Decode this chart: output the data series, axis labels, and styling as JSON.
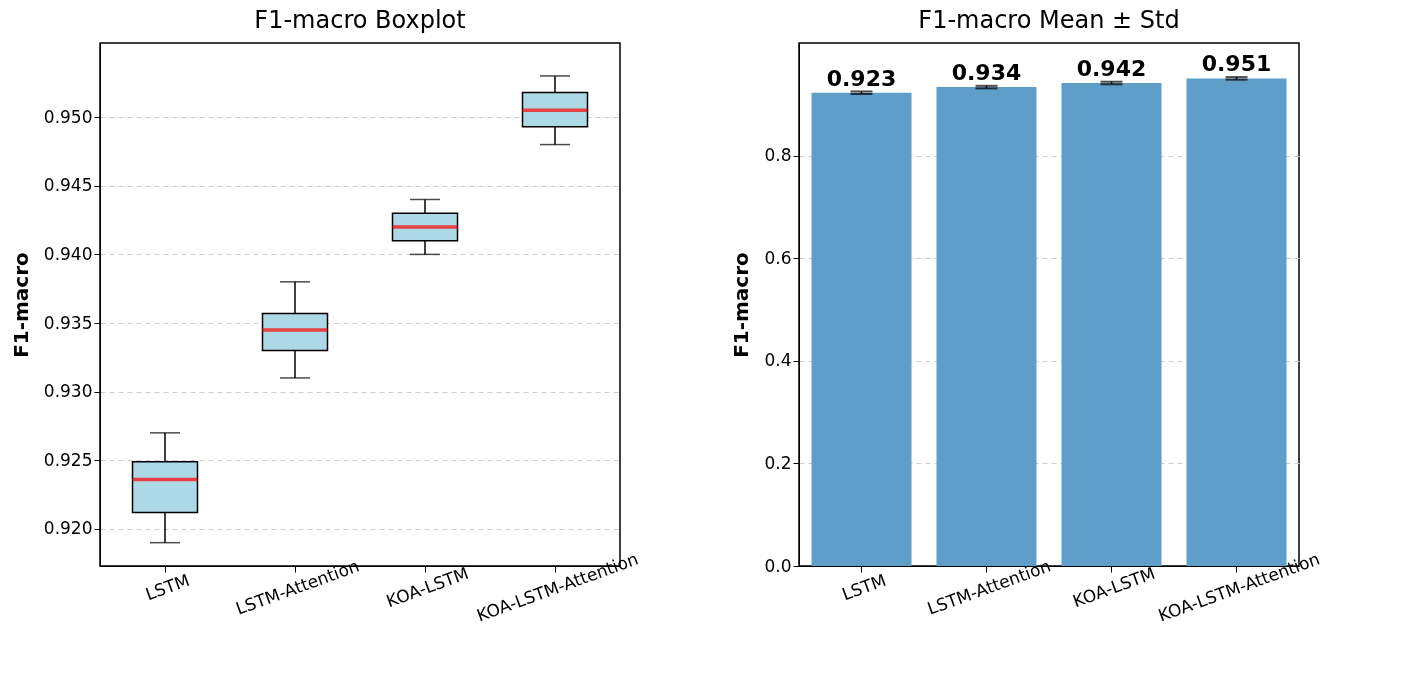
{
  "chart_data": [
    {
      "type": "box",
      "title": "F1-macro Boxplot",
      "ylabel": "F1-macro",
      "categories": [
        "LSTM",
        "LSTM-Attention",
        "KOA-LSTM",
        "KOA-LSTM-Attention"
      ],
      "series": [
        {
          "color": "#add8e6",
          "boxes": [
            {
              "low": 0.919,
              "q1": 0.9212,
              "median": 0.9236,
              "q3": 0.9249,
              "high": 0.927
            },
            {
              "low": 0.931,
              "q1": 0.933,
              "median": 0.9345,
              "q3": 0.9357,
              "high": 0.938
            },
            {
              "low": 0.94,
              "q1": 0.941,
              "median": 0.942,
              "q3": 0.943,
              "high": 0.944
            },
            {
              "low": 0.948,
              "q1": 0.9493,
              "median": 0.9505,
              "q3": 0.9518,
              "high": 0.953
            }
          ]
        }
      ],
      "ylim": [
        0.9173,
        0.9554
      ],
      "yticks": [
        {
          "value": 0.92,
          "label": "0.920"
        },
        {
          "value": 0.925,
          "label": "0.925"
        },
        {
          "value": 0.93,
          "label": "0.930"
        },
        {
          "value": 0.935,
          "label": "0.935"
        },
        {
          "value": 0.94,
          "label": "0.940"
        },
        {
          "value": 0.945,
          "label": "0.945"
        },
        {
          "value": 0.95,
          "label": "0.950"
        }
      ],
      "grid": "y"
    },
    {
      "type": "bar",
      "title": "F1-macro Mean ± Std",
      "ylabel": "F1-macro",
      "categories": [
        "LSTM",
        "LSTM-Attention",
        "KOA-LSTM",
        "KOA-LSTM-Attention"
      ],
      "series": [
        {
          "color": "#5f9ec9",
          "values": [
            0.923,
            0.934,
            0.942,
            0.951
          ],
          "errors": [
            0.0025,
            0.0025,
            0.0025,
            0.0025
          ]
        }
      ],
      "data_labels": true,
      "ylim": [
        0,
        1.02
      ],
      "yticks": [
        {
          "value": 0,
          "label": "0.0"
        },
        {
          "value": 0.2,
          "label": "0.2"
        },
        {
          "value": 0.4,
          "label": "0.4"
        },
        {
          "value": 0.6,
          "label": "0.6"
        },
        {
          "value": 0.8,
          "label": "0.8"
        }
      ],
      "grid": "y"
    }
  ]
}
